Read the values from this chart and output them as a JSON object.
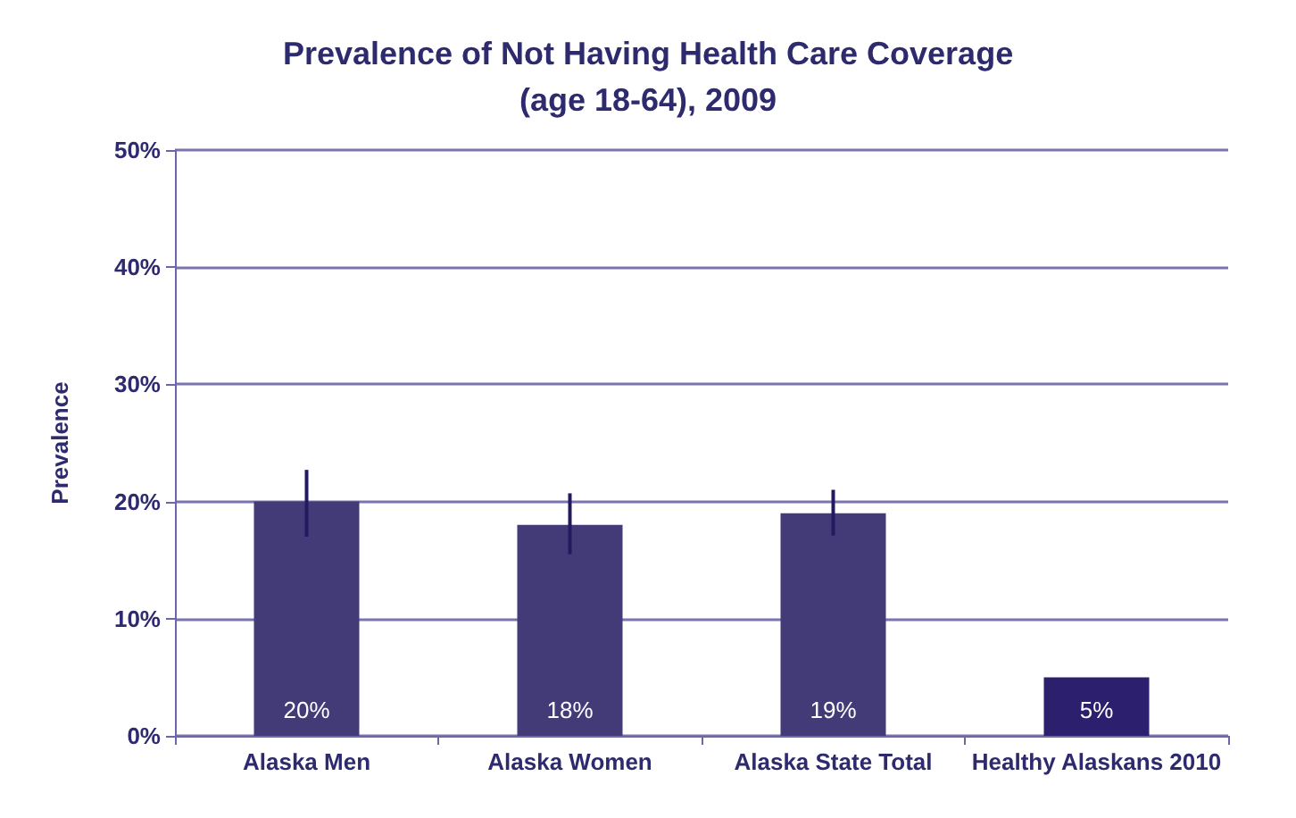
{
  "chart_data": {
    "type": "bar",
    "title": "Prevalence of Not Having Health Care Coverage\n(age 18-64), 2009",
    "ylabel": "Prevalence",
    "categories": [
      "Alaska Men",
      "Alaska Women",
      "Alaska State Total",
      "Healthy Alaskans 2010"
    ],
    "values": [
      20,
      18,
      19,
      5
    ],
    "colors": [
      "#433a78",
      "#433a78",
      "#433a78",
      "#2b1f6e"
    ],
    "errors": [
      [
        17,
        22.7
      ],
      [
        15.5,
        20.7
      ],
      [
        17.1,
        21
      ],
      null
    ],
    "value_labels": [
      "20%",
      "18%",
      "19%",
      "5%"
    ],
    "ylim": [
      0,
      50
    ],
    "yticks": [
      {
        "value": 0,
        "label": "0%"
      },
      {
        "value": 10,
        "label": "10%"
      },
      {
        "value": 20,
        "label": "20%"
      },
      {
        "value": 30,
        "label": "30%"
      },
      {
        "value": 40,
        "label": "40%"
      },
      {
        "value": 50,
        "label": "50%"
      }
    ],
    "grid": "y"
  }
}
